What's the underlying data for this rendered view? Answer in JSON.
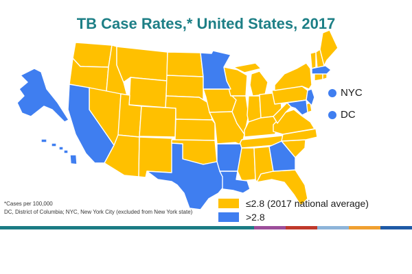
{
  "title": "TB Case Rates,* United States, 2017",
  "colors": {
    "low": "#FFC000",
    "high": "#3F7EF0",
    "title": "#1D7F86"
  },
  "categories": {
    "low": {
      "label": "≤2.8 (2017 national average)"
    },
    "high": {
      "label": ">2.8"
    }
  },
  "high_rate_states": [
    "Alaska",
    "Hawaii",
    "California",
    "Texas",
    "Arkansas",
    "Louisiana",
    "Georgia",
    "Minnesota",
    "New Jersey",
    "Maryland",
    "Massachusetts"
  ],
  "markers": [
    {
      "name": "NYC",
      "category": "high"
    },
    {
      "name": "DC",
      "category": "high"
    }
  ],
  "footnotes": {
    "line1": "*Cases per 100,000",
    "line2": "DC, District of Columbia; NYC, New York City (excluded from New York state)"
  },
  "bottom_bar": [
    {
      "color": "#1B7C84"
    },
    {
      "color": "#9C4E9A"
    },
    {
      "color": "#C0392B"
    },
    {
      "color": "#8DB4D9"
    },
    {
      "color": "#F0A030"
    },
    {
      "color": "#1F5AA6"
    }
  ]
}
